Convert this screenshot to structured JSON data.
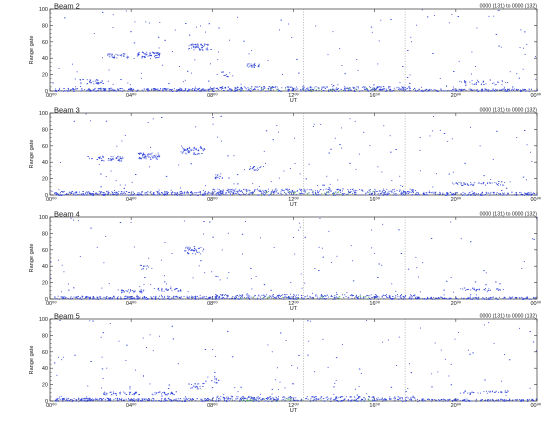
{
  "chart_data": [
    {
      "type": "scatter",
      "title": "Beam 2",
      "info": "0000 (131) to 0000 (132)",
      "xlabel": "UT",
      "ylabel": "Range gate",
      "xlim": [
        0,
        24
      ],
      "ylim": [
        0,
        100
      ],
      "x_ticks": [
        0,
        4,
        8,
        12,
        16,
        20,
        24
      ],
      "x_tick_labels": [
        "00⁰⁰",
        "04⁰⁰",
        "08⁰⁰",
        "12⁰⁰",
        "16⁰⁰",
        "20⁰⁰",
        "00⁰⁰"
      ],
      "y_ticks": [
        0,
        20,
        40,
        60,
        80,
        100
      ],
      "y_tick_labels": [
        "0",
        "20",
        "40",
        "60",
        "80",
        "100"
      ],
      "reference_lines_x": [
        12.5,
        17.5
      ],
      "grid": false,
      "series": [
        {
          "color": "#2b3fd6",
          "clusters": [
            {
              "x": [
                0.2,
                8
              ],
              "y": [
                0,
                4
              ],
              "n": 260
            },
            {
              "x": [
                8,
                18
              ],
              "y": [
                0,
                6
              ],
              "n": 330
            },
            {
              "x": [
                18,
                24
              ],
              "y": [
                0,
                3
              ],
              "n": 150
            },
            {
              "x": [
                1.4,
                2.6
              ],
              "y": [
                9,
                15
              ],
              "n": 35
            },
            {
              "x": [
                2.8,
                3.8
              ],
              "y": [
                40,
                46
              ],
              "n": 30
            },
            {
              "x": [
                4.2,
                5.4
              ],
              "y": [
                40,
                48
              ],
              "n": 60
            },
            {
              "x": [
                6.8,
                7.8
              ],
              "y": [
                50,
                58
              ],
              "n": 50
            },
            {
              "x": [
                9.6,
                10.3
              ],
              "y": [
                29,
                34
              ],
              "n": 25
            },
            {
              "x": [
                8.2,
                9.0
              ],
              "y": [
                18,
                24
              ],
              "n": 10
            },
            {
              "x": [
                20,
                22.6
              ],
              "y": [
                8,
                14
              ],
              "n": 35
            },
            {
              "x": [
                0,
                24
              ],
              "y": [
                5,
                100
              ],
              "n": 150
            }
          ]
        },
        {
          "color": "#3aa83a",
          "clusters": [
            {
              "x": [
                9,
                16
              ],
              "y": [
                0,
                4
              ],
              "n": 25
            }
          ]
        }
      ]
    },
    {
      "type": "scatter",
      "title": "Beam 3",
      "info": "0000 (131) to 0000 (132)",
      "xlabel": "UT",
      "ylabel": "Range gate",
      "xlim": [
        0,
        24
      ],
      "ylim": [
        0,
        100
      ],
      "x_ticks": [
        0,
        4,
        8,
        12,
        16,
        20,
        24
      ],
      "x_tick_labels": [
        "00⁰⁰",
        "04⁰⁰",
        "08⁰⁰",
        "12⁰⁰",
        "16⁰⁰",
        "20⁰⁰",
        "00⁰⁰"
      ],
      "y_ticks": [
        0,
        20,
        40,
        60,
        80,
        100
      ],
      "y_tick_labels": [
        "0",
        "20",
        "40",
        "60",
        "80",
        "100"
      ],
      "reference_lines_x": [
        12.5,
        17.5
      ],
      "grid": false,
      "series": [
        {
          "color": "#2b3fd6",
          "clusters": [
            {
              "x": [
                0.2,
                8
              ],
              "y": [
                0,
                5
              ],
              "n": 280
            },
            {
              "x": [
                8,
                18
              ],
              "y": [
                0,
                8
              ],
              "n": 380
            },
            {
              "x": [
                18,
                24
              ],
              "y": [
                0,
                4
              ],
              "n": 160
            },
            {
              "x": [
                1.8,
                3.6
              ],
              "y": [
                42,
                48
              ],
              "n": 45
            },
            {
              "x": [
                4.3,
                5.4
              ],
              "y": [
                44,
                52
              ],
              "n": 55
            },
            {
              "x": [
                6.4,
                7.6
              ],
              "y": [
                50,
                60
              ],
              "n": 55
            },
            {
              "x": [
                8.1,
                8.7
              ],
              "y": [
                20,
                27
              ],
              "n": 15
            },
            {
              "x": [
                9.8,
                10.4
              ],
              "y": [
                30,
                36
              ],
              "n": 15
            },
            {
              "x": [
                19.8,
                22.5
              ],
              "y": [
                12,
                16
              ],
              "n": 45
            },
            {
              "x": [
                0,
                24
              ],
              "y": [
                5,
                100
              ],
              "n": 150
            }
          ]
        },
        {
          "color": "#3aa83a",
          "clusters": [
            {
              "x": [
                9,
                16
              ],
              "y": [
                0,
                5
              ],
              "n": 30
            }
          ]
        }
      ]
    },
    {
      "type": "scatter",
      "title": "Beam 4",
      "info": "0000 (131) to 0000 (132)",
      "xlabel": "UT",
      "ylabel": "Range gate",
      "xlim": [
        0,
        24
      ],
      "ylim": [
        0,
        100
      ],
      "x_ticks": [
        0,
        4,
        8,
        12,
        16,
        20,
        24
      ],
      "x_tick_labels": [
        "00⁰⁰",
        "04⁰⁰",
        "08⁰⁰",
        "12⁰⁰",
        "16⁰⁰",
        "20⁰⁰",
        "00⁰⁰"
      ],
      "y_ticks": [
        0,
        20,
        40,
        60,
        80,
        100
      ],
      "y_tick_labels": [
        "0",
        "20",
        "40",
        "60",
        "80",
        "100"
      ],
      "reference_lines_x": [
        12.5,
        17.5
      ],
      "grid": false,
      "series": [
        {
          "color": "#2b3fd6",
          "clusters": [
            {
              "x": [
                0.2,
                8
              ],
              "y": [
                0,
                4
              ],
              "n": 240
            },
            {
              "x": [
                8,
                18
              ],
              "y": [
                0,
                6
              ],
              "n": 300
            },
            {
              "x": [
                18,
                24
              ],
              "y": [
                0,
                3
              ],
              "n": 140
            },
            {
              "x": [
                3.4,
                4.6
              ],
              "y": [
                8,
                12
              ],
              "n": 30
            },
            {
              "x": [
                5.2,
                6.5
              ],
              "y": [
                10,
                14
              ],
              "n": 30
            },
            {
              "x": [
                6.6,
                7.6
              ],
              "y": [
                55,
                64
              ],
              "n": 40
            },
            {
              "x": [
                4.3,
                5.0
              ],
              "y": [
                36,
                42
              ],
              "n": 12
            },
            {
              "x": [
                20.2,
                22.2
              ],
              "y": [
                10,
                14
              ],
              "n": 30
            },
            {
              "x": [
                0,
                24
              ],
              "y": [
                5,
                100
              ],
              "n": 140
            }
          ]
        },
        {
          "color": "#3aa83a",
          "clusters": [
            {
              "x": [
                9,
                16
              ],
              "y": [
                0,
                4
              ],
              "n": 22
            }
          ]
        }
      ]
    },
    {
      "type": "scatter",
      "title": "Beam 5",
      "info": "0000 (131) to 0000 (132)",
      "xlabel": "UT",
      "ylabel": "Range gate",
      "xlim": [
        0,
        24
      ],
      "ylim": [
        0,
        100
      ],
      "x_ticks": [
        0,
        4,
        8,
        12,
        16,
        20,
        24
      ],
      "x_tick_labels": [
        "00⁰⁰",
        "04⁰⁰",
        "08⁰⁰",
        "12⁰⁰",
        "16⁰⁰",
        "20⁰⁰",
        "00⁰⁰"
      ],
      "y_ticks": [
        0,
        20,
        40,
        60,
        80,
        100
      ],
      "y_tick_labels": [
        "0",
        "20",
        "40",
        "60",
        "80",
        "100"
      ],
      "reference_lines_x": [
        12.5,
        17.5
      ],
      "grid": false,
      "series": [
        {
          "color": "#2b3fd6",
          "clusters": [
            {
              "x": [
                0.2,
                8
              ],
              "y": [
                0,
                4
              ],
              "n": 260
            },
            {
              "x": [
                8,
                18
              ],
              "y": [
                0,
                6
              ],
              "n": 330
            },
            {
              "x": [
                18,
                24
              ],
              "y": [
                0,
                3
              ],
              "n": 150
            },
            {
              "x": [
                2.6,
                4.4
              ],
              "y": [
                8,
                12
              ],
              "n": 40
            },
            {
              "x": [
                5.0,
                6.2
              ],
              "y": [
                8,
                12
              ],
              "n": 30
            },
            {
              "x": [
                6.8,
                7.6
              ],
              "y": [
                15,
                22
              ],
              "n": 20
            },
            {
              "x": [
                7.6,
                8.3
              ],
              "y": [
                22,
                30
              ],
              "n": 12
            },
            {
              "x": [
                20.2,
                22.6
              ],
              "y": [
                10,
                13
              ],
              "n": 35
            },
            {
              "x": [
                0,
                24
              ],
              "y": [
                5,
                100
              ],
              "n": 140
            }
          ]
        },
        {
          "color": "#3aa83a",
          "clusters": [
            {
              "x": [
                9,
                16
              ],
              "y": [
                0,
                4
              ],
              "n": 25
            }
          ]
        }
      ]
    }
  ]
}
